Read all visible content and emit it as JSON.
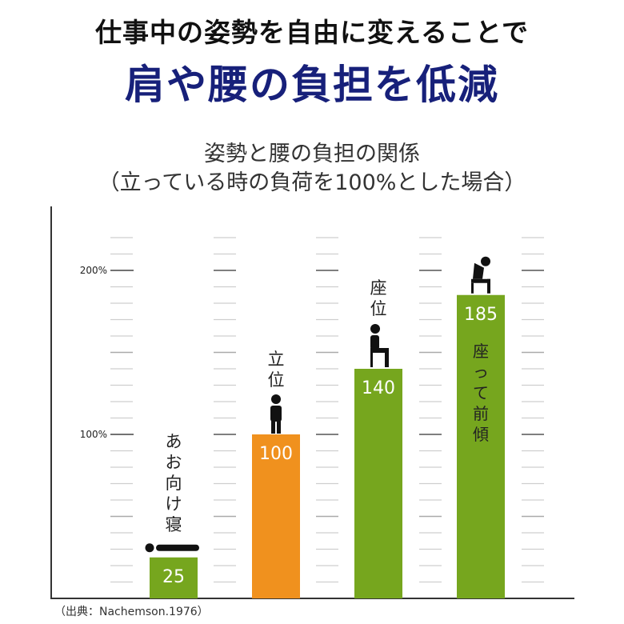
{
  "headline": {
    "line1": "仕事中の姿勢を自由に変えることで",
    "line2": "肩や腰の負担を低減"
  },
  "chart_title": {
    "line1": "姿勢と腰の負担の関係",
    "line2": "（立っている時の負荷を100%とした場合）"
  },
  "source": "（出典：Nachemson.1976）",
  "colors": {
    "green": "#76a61e",
    "orange": "#f0911e",
    "headline_blue": "#17207a",
    "tick": "#cfcfcf",
    "axis": "#333333"
  },
  "chart_data": {
    "type": "bar",
    "title": "姿勢と腰の負担の関係",
    "subtitle": "（立っている時の負荷を100%とした場合）",
    "xlabel": "",
    "ylabel": "",
    "ylim": [
      0,
      230
    ],
    "yticks": [
      {
        "value": 100,
        "label": "100%"
      },
      {
        "value": 200,
        "label": "200%"
      }
    ],
    "grid": false,
    "categories": [
      "あお向け寝",
      "立位",
      "座位",
      "座って前傾"
    ],
    "values": [
      25,
      100,
      140,
      185
    ],
    "value_labels": [
      "25",
      "100",
      "140",
      "185"
    ],
    "bar_colors": [
      "#76a61e",
      "#f0911e",
      "#76a61e",
      "#76a61e"
    ],
    "label_positions": [
      "above",
      "above",
      "above",
      "inside"
    ],
    "figure_icons": [
      "lying-person-icon",
      "standing-person-icon",
      "sitting-person-icon",
      "leaning-forward-person-icon"
    ]
  }
}
